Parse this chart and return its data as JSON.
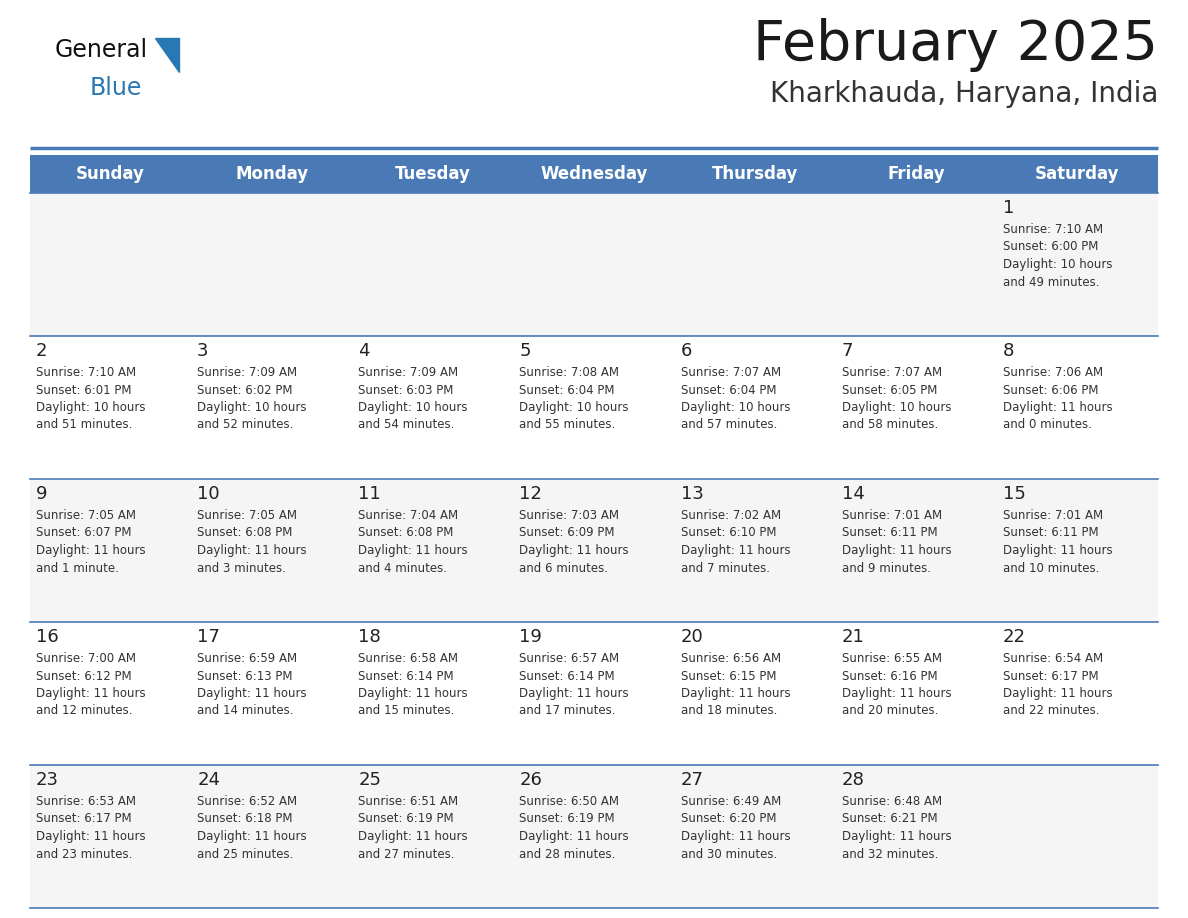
{
  "title": "February 2025",
  "subtitle": "Kharkhauda, Haryana, India",
  "header_color": "#4a7ab5",
  "header_text_color": "#ffffff",
  "bg_color": "#ffffff",
  "border_color": "#4a7ab5",
  "days_of_week": [
    "Sunday",
    "Monday",
    "Tuesday",
    "Wednesday",
    "Thursday",
    "Friday",
    "Saturday"
  ],
  "title_color": "#1a1a1a",
  "subtitle_color": "#333333",
  "day_num_color": "#222222",
  "info_color": "#333333",
  "row_even_color": "#f5f5f5",
  "row_odd_color": "#ffffff",
  "calendar": [
    [
      {
        "day": null,
        "sunrise": null,
        "sunset": null,
        "daylight_line1": null,
        "daylight_line2": null
      },
      {
        "day": null,
        "sunrise": null,
        "sunset": null,
        "daylight_line1": null,
        "daylight_line2": null
      },
      {
        "day": null,
        "sunrise": null,
        "sunset": null,
        "daylight_line1": null,
        "daylight_line2": null
      },
      {
        "day": null,
        "sunrise": null,
        "sunset": null,
        "daylight_line1": null,
        "daylight_line2": null
      },
      {
        "day": null,
        "sunrise": null,
        "sunset": null,
        "daylight_line1": null,
        "daylight_line2": null
      },
      {
        "day": null,
        "sunrise": null,
        "sunset": null,
        "daylight_line1": null,
        "daylight_line2": null
      },
      {
        "day": 1,
        "sunrise": "7:10 AM",
        "sunset": "6:00 PM",
        "daylight_line1": "Daylight: 10 hours",
        "daylight_line2": "and 49 minutes."
      }
    ],
    [
      {
        "day": 2,
        "sunrise": "7:10 AM",
        "sunset": "6:01 PM",
        "daylight_line1": "Daylight: 10 hours",
        "daylight_line2": "and 51 minutes."
      },
      {
        "day": 3,
        "sunrise": "7:09 AM",
        "sunset": "6:02 PM",
        "daylight_line1": "Daylight: 10 hours",
        "daylight_line2": "and 52 minutes."
      },
      {
        "day": 4,
        "sunrise": "7:09 AM",
        "sunset": "6:03 PM",
        "daylight_line1": "Daylight: 10 hours",
        "daylight_line2": "and 54 minutes."
      },
      {
        "day": 5,
        "sunrise": "7:08 AM",
        "sunset": "6:04 PM",
        "daylight_line1": "Daylight: 10 hours",
        "daylight_line2": "and 55 minutes."
      },
      {
        "day": 6,
        "sunrise": "7:07 AM",
        "sunset": "6:04 PM",
        "daylight_line1": "Daylight: 10 hours",
        "daylight_line2": "and 57 minutes."
      },
      {
        "day": 7,
        "sunrise": "7:07 AM",
        "sunset": "6:05 PM",
        "daylight_line1": "Daylight: 10 hours",
        "daylight_line2": "and 58 minutes."
      },
      {
        "day": 8,
        "sunrise": "7:06 AM",
        "sunset": "6:06 PM",
        "daylight_line1": "Daylight: 11 hours",
        "daylight_line2": "and 0 minutes."
      }
    ],
    [
      {
        "day": 9,
        "sunrise": "7:05 AM",
        "sunset": "6:07 PM",
        "daylight_line1": "Daylight: 11 hours",
        "daylight_line2": "and 1 minute."
      },
      {
        "day": 10,
        "sunrise": "7:05 AM",
        "sunset": "6:08 PM",
        "daylight_line1": "Daylight: 11 hours",
        "daylight_line2": "and 3 minutes."
      },
      {
        "day": 11,
        "sunrise": "7:04 AM",
        "sunset": "6:08 PM",
        "daylight_line1": "Daylight: 11 hours",
        "daylight_line2": "and 4 minutes."
      },
      {
        "day": 12,
        "sunrise": "7:03 AM",
        "sunset": "6:09 PM",
        "daylight_line1": "Daylight: 11 hours",
        "daylight_line2": "and 6 minutes."
      },
      {
        "day": 13,
        "sunrise": "7:02 AM",
        "sunset": "6:10 PM",
        "daylight_line1": "Daylight: 11 hours",
        "daylight_line2": "and 7 minutes."
      },
      {
        "day": 14,
        "sunrise": "7:01 AM",
        "sunset": "6:11 PM",
        "daylight_line1": "Daylight: 11 hours",
        "daylight_line2": "and 9 minutes."
      },
      {
        "day": 15,
        "sunrise": "7:01 AM",
        "sunset": "6:11 PM",
        "daylight_line1": "Daylight: 11 hours",
        "daylight_line2": "and 10 minutes."
      }
    ],
    [
      {
        "day": 16,
        "sunrise": "7:00 AM",
        "sunset": "6:12 PM",
        "daylight_line1": "Daylight: 11 hours",
        "daylight_line2": "and 12 minutes."
      },
      {
        "day": 17,
        "sunrise": "6:59 AM",
        "sunset": "6:13 PM",
        "daylight_line1": "Daylight: 11 hours",
        "daylight_line2": "and 14 minutes."
      },
      {
        "day": 18,
        "sunrise": "6:58 AM",
        "sunset": "6:14 PM",
        "daylight_line1": "Daylight: 11 hours",
        "daylight_line2": "and 15 minutes."
      },
      {
        "day": 19,
        "sunrise": "6:57 AM",
        "sunset": "6:14 PM",
        "daylight_line1": "Daylight: 11 hours",
        "daylight_line2": "and 17 minutes."
      },
      {
        "day": 20,
        "sunrise": "6:56 AM",
        "sunset": "6:15 PM",
        "daylight_line1": "Daylight: 11 hours",
        "daylight_line2": "and 18 minutes."
      },
      {
        "day": 21,
        "sunrise": "6:55 AM",
        "sunset": "6:16 PM",
        "daylight_line1": "Daylight: 11 hours",
        "daylight_line2": "and 20 minutes."
      },
      {
        "day": 22,
        "sunrise": "6:54 AM",
        "sunset": "6:17 PM",
        "daylight_line1": "Daylight: 11 hours",
        "daylight_line2": "and 22 minutes."
      }
    ],
    [
      {
        "day": 23,
        "sunrise": "6:53 AM",
        "sunset": "6:17 PM",
        "daylight_line1": "Daylight: 11 hours",
        "daylight_line2": "and 23 minutes."
      },
      {
        "day": 24,
        "sunrise": "6:52 AM",
        "sunset": "6:18 PM",
        "daylight_line1": "Daylight: 11 hours",
        "daylight_line2": "and 25 minutes."
      },
      {
        "day": 25,
        "sunrise": "6:51 AM",
        "sunset": "6:19 PM",
        "daylight_line1": "Daylight: 11 hours",
        "daylight_line2": "and 27 minutes."
      },
      {
        "day": 26,
        "sunrise": "6:50 AM",
        "sunset": "6:19 PM",
        "daylight_line1": "Daylight: 11 hours",
        "daylight_line2": "and 28 minutes."
      },
      {
        "day": 27,
        "sunrise": "6:49 AM",
        "sunset": "6:20 PM",
        "daylight_line1": "Daylight: 11 hours",
        "daylight_line2": "and 30 minutes."
      },
      {
        "day": 28,
        "sunrise": "6:48 AM",
        "sunset": "6:21 PM",
        "daylight_line1": "Daylight: 11 hours",
        "daylight_line2": "and 32 minutes."
      },
      {
        "day": null,
        "sunrise": null,
        "sunset": null,
        "daylight_line1": null,
        "daylight_line2": null
      }
    ]
  ]
}
